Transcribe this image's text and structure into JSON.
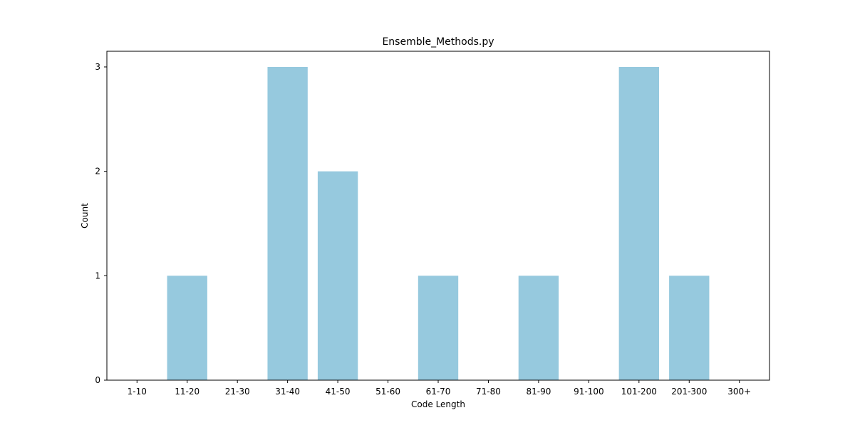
{
  "chart_data": {
    "type": "bar",
    "title": "Ensemble_Methods.py",
    "xlabel": "Code Length",
    "ylabel": "Count",
    "categories": [
      "1-10",
      "11-20",
      "21-30",
      "31-40",
      "41-50",
      "51-60",
      "61-70",
      "71-80",
      "81-90",
      "91-100",
      "101-200",
      "201-300",
      "300+"
    ],
    "values": [
      0,
      1,
      0,
      3,
      2,
      0,
      1,
      0,
      1,
      0,
      3,
      1,
      0
    ],
    "ylim": [
      0,
      3.15
    ],
    "yticks": [
      0,
      1,
      2,
      3
    ],
    "bar_color": "#96c9de",
    "grid": false,
    "legend": "none"
  }
}
